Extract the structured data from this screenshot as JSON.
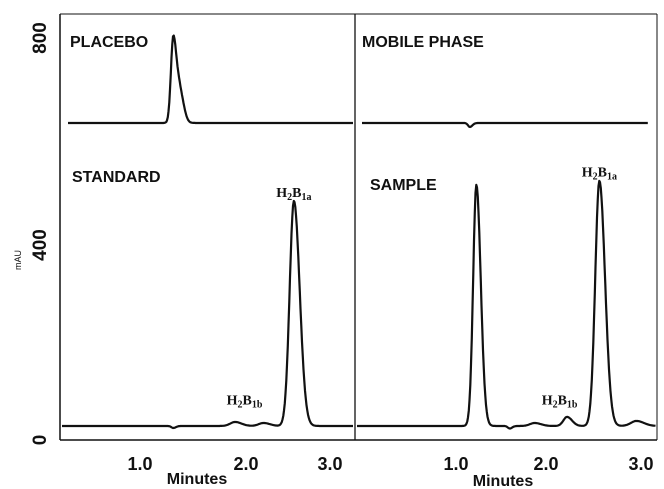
{
  "chart_data": {
    "type": "line",
    "ylabel": "mAU",
    "xlabel": "Minutes",
    "y_ticks": [
      "0",
      "400",
      "800"
    ],
    "x_ticks": [
      "1.0",
      "2.0",
      "3.0"
    ],
    "grid": false,
    "panels": [
      {
        "id": "placebo",
        "title": "PLACEBO",
        "baseline_mau": 615,
        "peaks": [
          {
            "time_min": 1.35,
            "height_mau": 170,
            "width": 0.025
          },
          {
            "time_min": 1.42,
            "height_mau": 60,
            "width": 0.03
          }
        ],
        "peak_labels": []
      },
      {
        "id": "mobile-phase",
        "title": "MOBILE PHASE",
        "baseline_mau": 615,
        "peaks": [
          {
            "time_min": 1.15,
            "height_mau": -8,
            "width": 0.02
          }
        ],
        "peak_labels": []
      },
      {
        "id": "standard",
        "title": "STANDARD",
        "baseline_mau": 12,
        "peaks": [
          {
            "time_min": 1.35,
            "height_mau": -4,
            "width": 0.02
          },
          {
            "time_min": 2.0,
            "height_mau": 8,
            "width": 0.05
          },
          {
            "time_min": 2.3,
            "height_mau": 6,
            "width": 0.05
          },
          {
            "time_min": 2.62,
            "height_mau": 448,
            "width": 0.045
          }
        ],
        "peak_labels": [
          {
            "text": "H",
            "sub1": "2",
            "mid": "B",
            "sub2": "1a",
            "time_min": 2.62,
            "at_mau": 468
          },
          {
            "text": "H",
            "sub1": "2",
            "mid": "B",
            "sub2": "1b",
            "time_min": 2.1,
            "at_mau": 55
          }
        ]
      },
      {
        "id": "sample",
        "title": "SAMPLE",
        "baseline_mau": 12,
        "peaks": [
          {
            "time_min": 1.22,
            "height_mau": 480,
            "width": 0.035
          },
          {
            "time_min": 1.58,
            "height_mau": -5,
            "width": 0.02
          },
          {
            "time_min": 1.85,
            "height_mau": 6,
            "width": 0.05
          },
          {
            "time_min": 2.2,
            "height_mau": 18,
            "width": 0.04
          },
          {
            "time_min": 2.55,
            "height_mau": 488,
            "width": 0.045
          },
          {
            "time_min": 2.95,
            "height_mau": 10,
            "width": 0.06
          }
        ],
        "peak_labels": [
          {
            "text": "H",
            "sub1": "2",
            "mid": "B",
            "sub2": "1a",
            "time_min": 2.55,
            "at_mau": 508
          },
          {
            "text": "H",
            "sub1": "2",
            "mid": "B",
            "sub2": "1b",
            "time_min": 2.12,
            "at_mau": 55
          }
        ]
      }
    ]
  }
}
